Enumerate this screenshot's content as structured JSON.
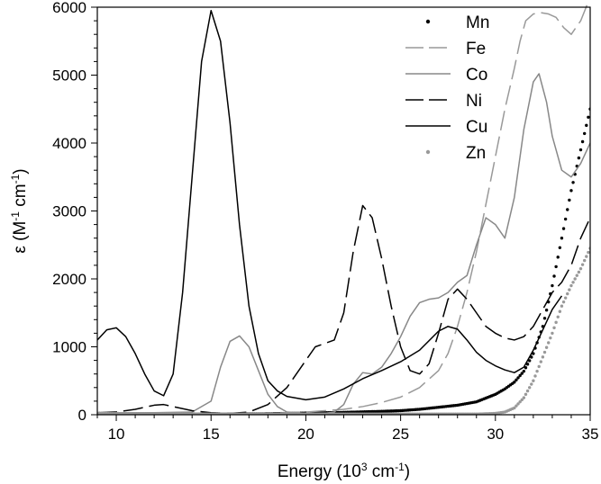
{
  "chart_data": {
    "type": "line",
    "title": "",
    "xlabel": {
      "prefix": "Energy (10",
      "sup1": "3",
      "mid": " cm",
      "sup2": "-1",
      "suffix": ")"
    },
    "ylabel": {
      "prefix": "ε (M",
      "sup1": "-1",
      "mid": " cm",
      "sup2": "-1",
      "suffix": ")"
    },
    "xlim": [
      9,
      35
    ],
    "ylim": [
      0,
      6000
    ],
    "xticks": [
      10,
      15,
      20,
      25,
      30,
      35
    ],
    "yticks": [
      0,
      1000,
      2000,
      3000,
      4000,
      5000,
      6000
    ],
    "grid": false,
    "legend_position": "top-right",
    "series": [
      {
        "name": "Mn",
        "color": "#000000",
        "style": "dotted",
        "x": [
          9,
          12,
          15,
          18,
          20,
          22,
          24,
          25,
          26,
          27,
          28,
          29,
          30,
          30.5,
          31,
          31.5,
          32,
          32.5,
          33,
          33.5,
          34,
          34.5,
          35
        ],
        "y": [
          20,
          15,
          10,
          15,
          25,
          35,
          50,
          60,
          80,
          110,
          140,
          190,
          300,
          380,
          480,
          640,
          900,
          1300,
          1900,
          2600,
          3300,
          3900,
          4500
        ]
      },
      {
        "name": "Fe",
        "color": "#999999",
        "style": "long-dash",
        "x": [
          9,
          12,
          15,
          18,
          20,
          22,
          23,
          24,
          25,
          26,
          27,
          27.5,
          28,
          28.5,
          29,
          29.5,
          30,
          30.5,
          31,
          31.3,
          31.6,
          32,
          32.4,
          32.8,
          33.2,
          33.6,
          34,
          34.5,
          35
        ],
        "y": [
          20,
          15,
          10,
          20,
          40,
          80,
          120,
          180,
          260,
          400,
          650,
          900,
          1300,
          1800,
          2400,
          3100,
          3800,
          4500,
          5100,
          5500,
          5800,
          5900,
          5920,
          5900,
          5850,
          5700,
          5600,
          5800,
          6150
        ]
      },
      {
        "name": "Co",
        "color": "#888888",
        "style": "solid",
        "x": [
          9,
          10,
          12,
          14,
          15,
          15.5,
          16,
          16.5,
          17,
          17.5,
          18,
          18.5,
          19,
          20,
          21,
          21.5,
          22,
          22.5,
          23,
          23.5,
          24,
          24.5,
          25,
          25.5,
          26,
          26.5,
          27,
          27.5,
          28,
          28.5,
          29,
          29.5,
          30,
          30.5,
          31,
          31.5,
          32,
          32.3,
          32.7,
          33,
          33.5,
          34,
          34.5,
          35
        ],
        "y": [
          30,
          30,
          30,
          40,
          200,
          700,
          1080,
          1160,
          1000,
          650,
          300,
          120,
          40,
          20,
          20,
          40,
          150,
          450,
          620,
          600,
          700,
          900,
          1150,
          1450,
          1650,
          1700,
          1720,
          1800,
          1950,
          2050,
          2500,
          2900,
          2800,
          2600,
          3200,
          4200,
          4900,
          5020,
          4600,
          4100,
          3600,
          3500,
          3700,
          4000
        ]
      },
      {
        "name": "Ni",
        "color": "#000000",
        "style": "long-dash",
        "x": [
          9,
          10,
          11,
          12,
          12.5,
          13,
          14,
          15,
          16,
          17,
          18,
          19,
          20,
          20.5,
          21,
          21.5,
          22,
          22.5,
          23,
          23.5,
          24,
          24.5,
          25,
          25.5,
          26,
          26.5,
          27,
          27.5,
          28,
          28.5,
          29,
          29.5,
          30,
          30.5,
          31,
          31.5,
          32,
          32.5,
          33,
          33.5,
          34,
          34.5,
          35
        ],
        "y": [
          30,
          40,
          80,
          140,
          150,
          120,
          60,
          30,
          20,
          40,
          150,
          400,
          800,
          1000,
          1050,
          1100,
          1500,
          2400,
          3080,
          2900,
          2300,
          1600,
          1000,
          650,
          600,
          750,
          1200,
          1700,
          1850,
          1700,
          1500,
          1300,
          1200,
          1130,
          1100,
          1150,
          1300,
          1550,
          1800,
          1950,
          2200,
          2600,
          2900
        ]
      },
      {
        "name": "Cu",
        "color": "#000000",
        "style": "solid",
        "x": [
          9,
          9.5,
          10,
          10.5,
          11,
          11.5,
          12,
          12.5,
          13,
          13.5,
          14,
          14.5,
          15,
          15.5,
          16,
          16.5,
          17,
          17.5,
          18,
          18.5,
          19,
          20,
          21,
          22,
          23,
          24,
          25,
          26,
          27,
          27.5,
          28,
          28.5,
          29,
          29.5,
          30,
          30.5,
          31,
          31.5,
          32,
          32.5,
          33,
          33.5
        ],
        "y": [
          1100,
          1250,
          1280,
          1150,
          900,
          600,
          350,
          280,
          600,
          1800,
          3500,
          5200,
          5950,
          5500,
          4300,
          2800,
          1600,
          900,
          500,
          350,
          270,
          220,
          260,
          380,
          530,
          650,
          780,
          950,
          1230,
          1300,
          1260,
          1100,
          920,
          800,
          720,
          660,
          620,
          700,
          950,
          1250,
          1550,
          1750
        ]
      },
      {
        "name": "Zn",
        "color": "#999999",
        "style": "dotted",
        "x": [
          9,
          12,
          15,
          18,
          21,
          24,
          27,
          28,
          29,
          30,
          30.5,
          31,
          31.5,
          32,
          32.5,
          33,
          33.5,
          34,
          34.5,
          35
        ],
        "y": [
          20,
          10,
          10,
          10,
          10,
          10,
          10,
          10,
          10,
          20,
          40,
          100,
          250,
          500,
          850,
          1200,
          1600,
          1900,
          2150,
          2450
        ]
      }
    ]
  }
}
